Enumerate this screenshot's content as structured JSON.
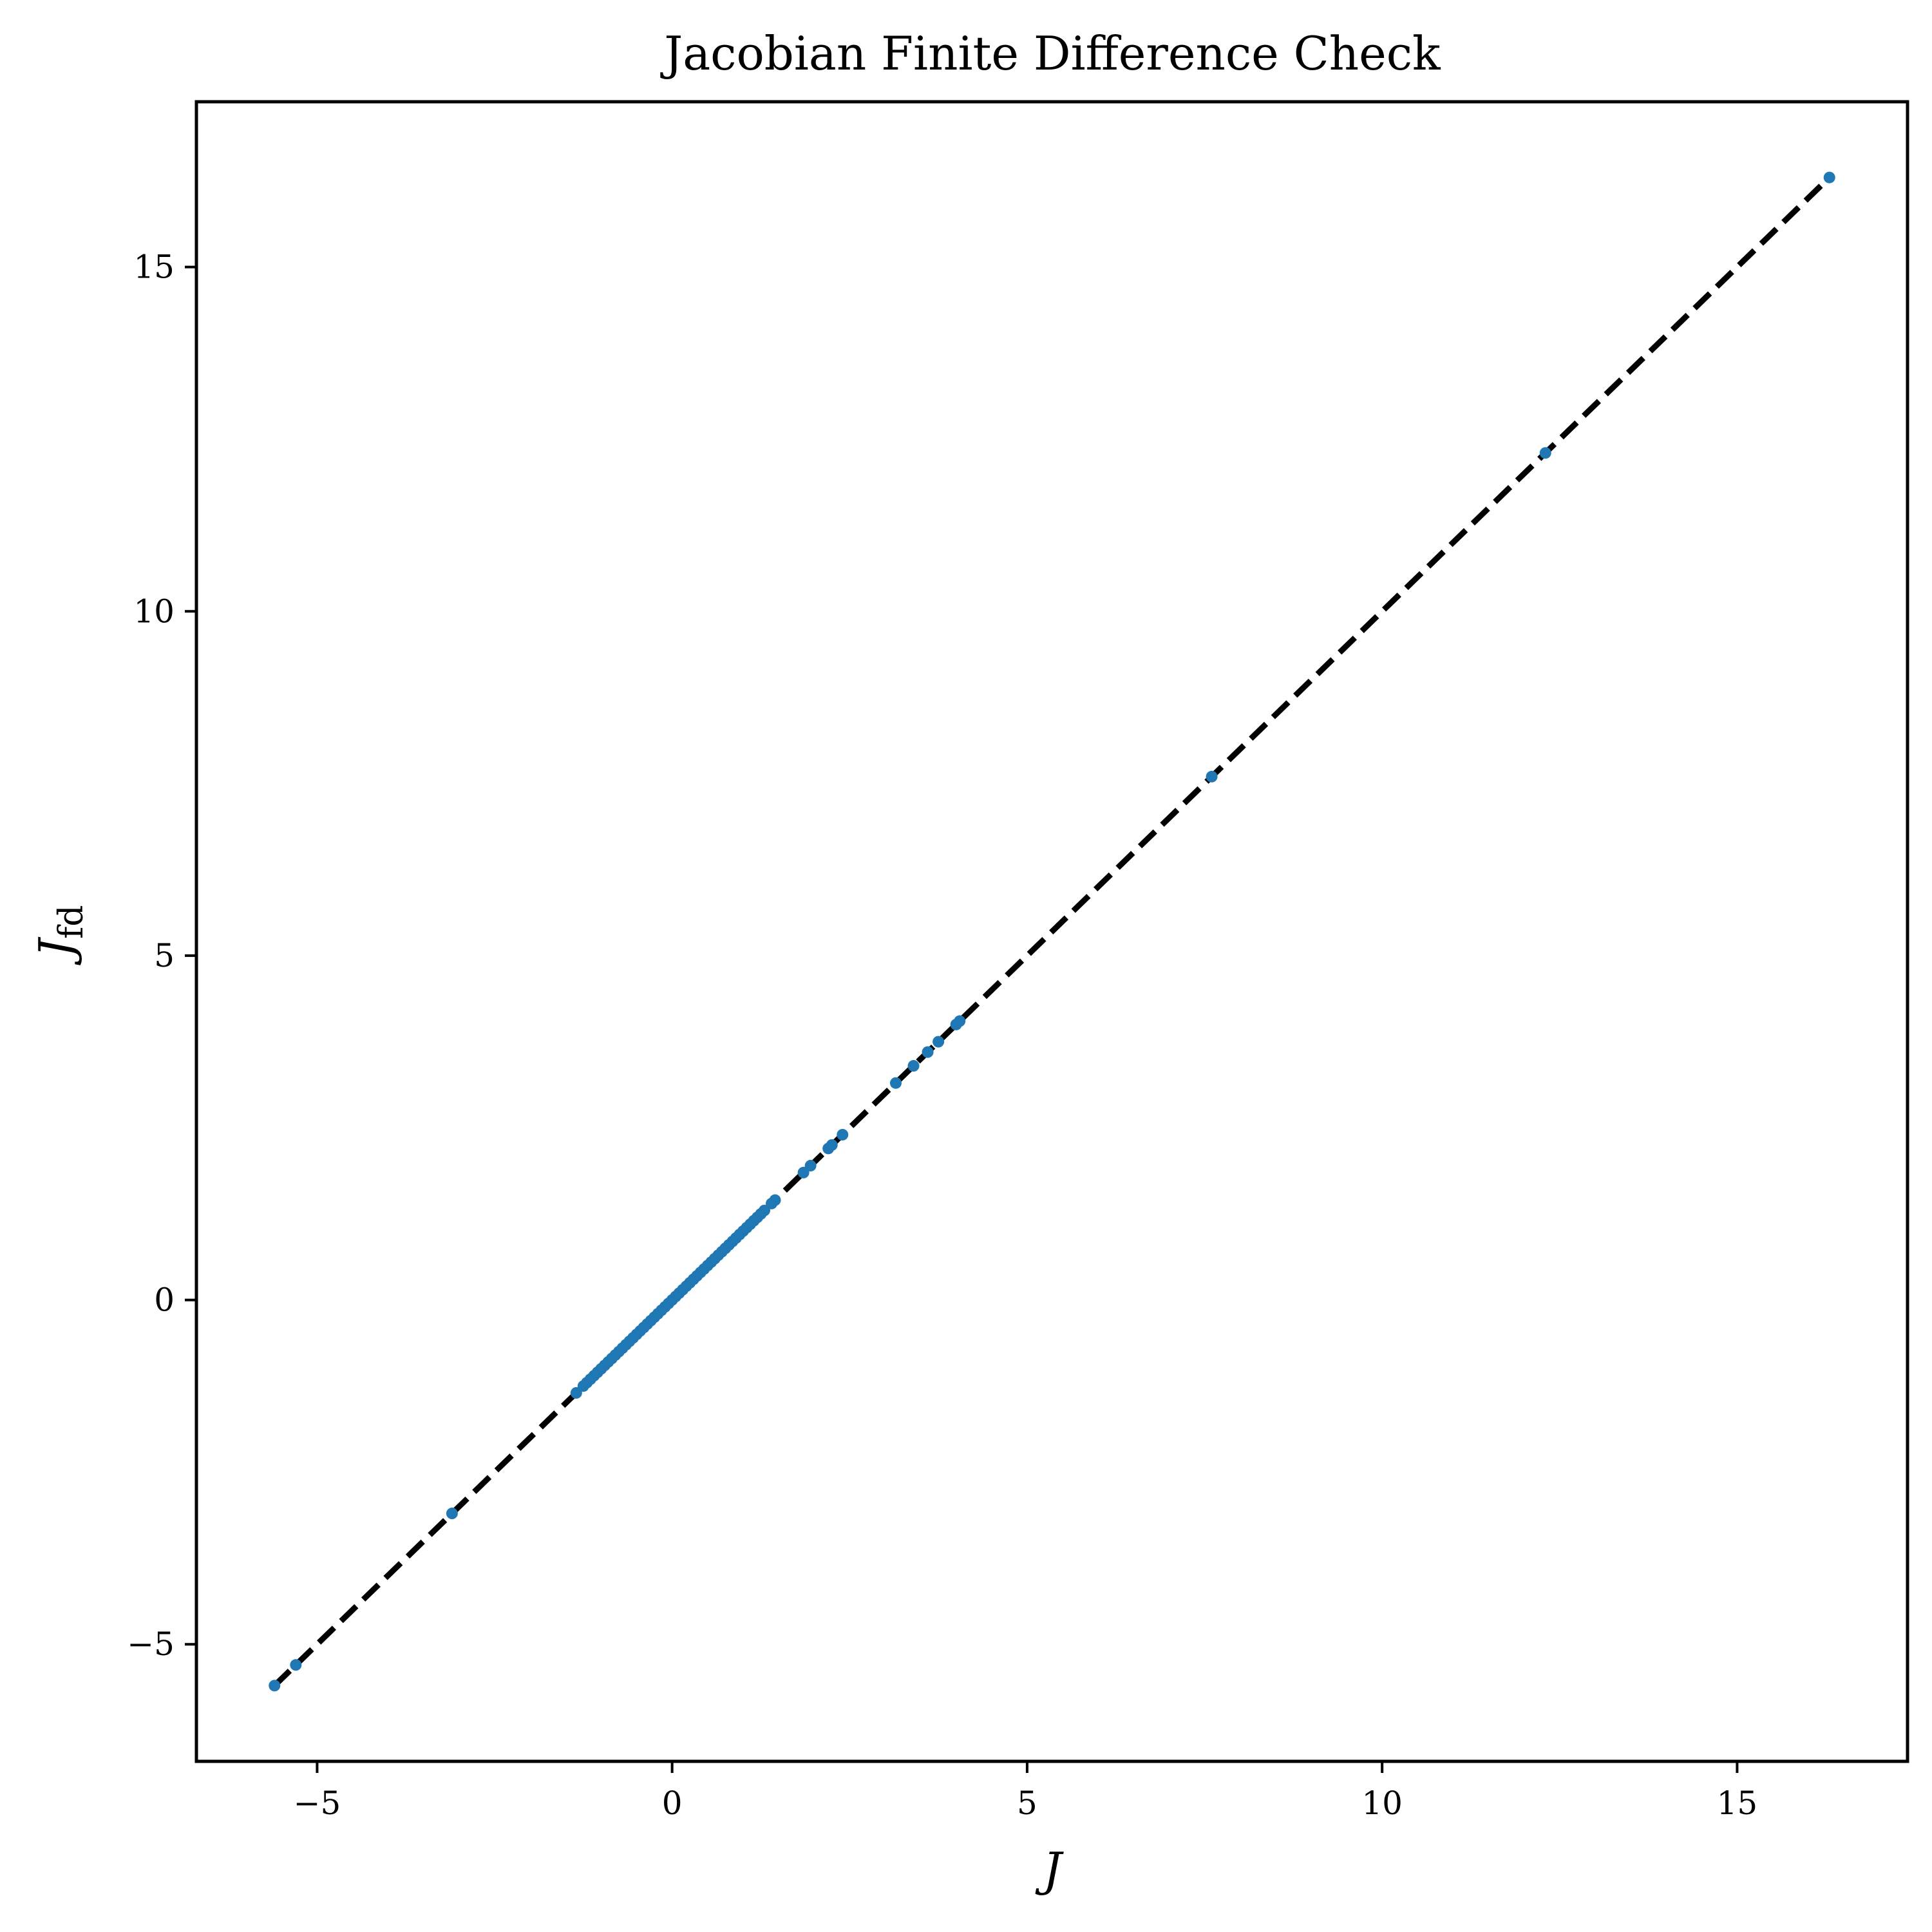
{
  "chart_data": {
    "type": "scatter",
    "title": "Jacobian Finite Difference Check",
    "xlabel": "J",
    "ylabel": "J",
    "ylabel_subscript": "fd",
    "xlim": [
      -6.7,
      17.4
    ],
    "ylim": [
      -6.7,
      17.4
    ],
    "xticks": [
      -5,
      0,
      5,
      10,
      15
    ],
    "yticks": [
      -5,
      0,
      5,
      10,
      15
    ],
    "xtick_labels": [
      "−5",
      "0",
      "5",
      "10",
      "15"
    ],
    "ytick_labels": [
      "−5",
      "0",
      "5",
      "10",
      "15"
    ],
    "grid": false,
    "reference_line": {
      "style": "dashed",
      "color": "#000000",
      "from": [
        -5.6,
        -5.6
      ],
      "to": [
        16.3,
        16.3
      ]
    },
    "series": [
      {
        "color": "#1f77b4",
        "x": [
          -5.6,
          -5.3,
          -3.1,
          -1.35,
          -1.25,
          -1.2,
          -1.15,
          -1.1,
          -1.05,
          -1.0,
          -0.95,
          -0.9,
          -0.85,
          -0.8,
          -0.75,
          -0.7,
          -0.65,
          -0.6,
          -0.55,
          -0.5,
          -0.45,
          -0.4,
          -0.35,
          -0.3,
          -0.25,
          -0.2,
          -0.15,
          -0.1,
          -0.05,
          0.0,
          0.05,
          0.1,
          0.15,
          0.2,
          0.25,
          0.3,
          0.35,
          0.4,
          0.45,
          0.5,
          0.55,
          0.6,
          0.65,
          0.7,
          0.75,
          0.8,
          0.85,
          0.9,
          0.95,
          1.0,
          1.05,
          1.1,
          1.15,
          1.2,
          1.25,
          1.3,
          1.4,
          1.45,
          1.85,
          1.95,
          2.2,
          2.25,
          2.4,
          3.15,
          3.4,
          3.6,
          3.75,
          4.0,
          4.05,
          7.6,
          12.3,
          16.3
        ],
        "y": [
          -5.6,
          -5.3,
          -3.1,
          -1.35,
          -1.25,
          -1.2,
          -1.15,
          -1.1,
          -1.05,
          -1.0,
          -0.95,
          -0.9,
          -0.85,
          -0.8,
          -0.75,
          -0.7,
          -0.65,
          -0.6,
          -0.55,
          -0.5,
          -0.45,
          -0.4,
          -0.35,
          -0.3,
          -0.25,
          -0.2,
          -0.15,
          -0.1,
          -0.05,
          0.0,
          0.05,
          0.1,
          0.15,
          0.2,
          0.25,
          0.3,
          0.35,
          0.4,
          0.45,
          0.5,
          0.55,
          0.6,
          0.65,
          0.7,
          0.75,
          0.8,
          0.85,
          0.9,
          0.95,
          1.0,
          1.05,
          1.1,
          1.15,
          1.2,
          1.25,
          1.3,
          1.4,
          1.45,
          1.85,
          1.95,
          2.2,
          2.25,
          2.4,
          3.15,
          3.4,
          3.6,
          3.75,
          4.0,
          4.05,
          7.6,
          12.3,
          16.3
        ]
      }
    ]
  }
}
